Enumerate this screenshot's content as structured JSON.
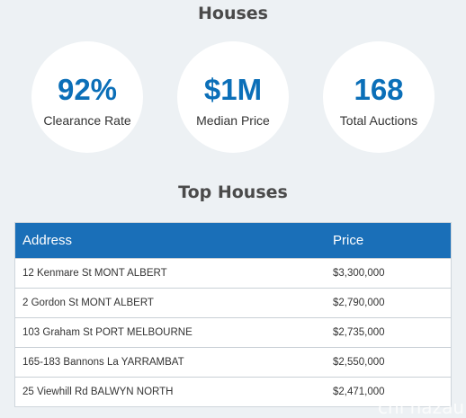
{
  "title": "Houses",
  "stats": [
    {
      "value": "92%",
      "label": "Clearance Rate"
    },
    {
      "value": "$1M",
      "label": "Median Price"
    },
    {
      "value": "168",
      "label": "Total Auctions"
    }
  ],
  "subtitle": "Top Houses",
  "table": {
    "headers": [
      "Address",
      "Price"
    ],
    "rows": [
      {
        "address": "12 Kenmare St MONT ALBERT",
        "price": "$3,300,000"
      },
      {
        "address": "2 Gordon St MONT ALBERT",
        "price": "$2,790,000"
      },
      {
        "address": "103 Graham St PORT MELBOURNE",
        "price": "$2,735,000"
      },
      {
        "address": "165-183 Bannons La YARRAMBAT",
        "price": "$2,550,000"
      },
      {
        "address": "25 Viewhill Rd BALWYN NORTH",
        "price": "$2,471,000"
      }
    ]
  },
  "watermark": "chi nazau",
  "colors": {
    "accent": "#0b6fb8",
    "header_bg": "#1a6fb8",
    "page_bg": "#edf1f4"
  }
}
